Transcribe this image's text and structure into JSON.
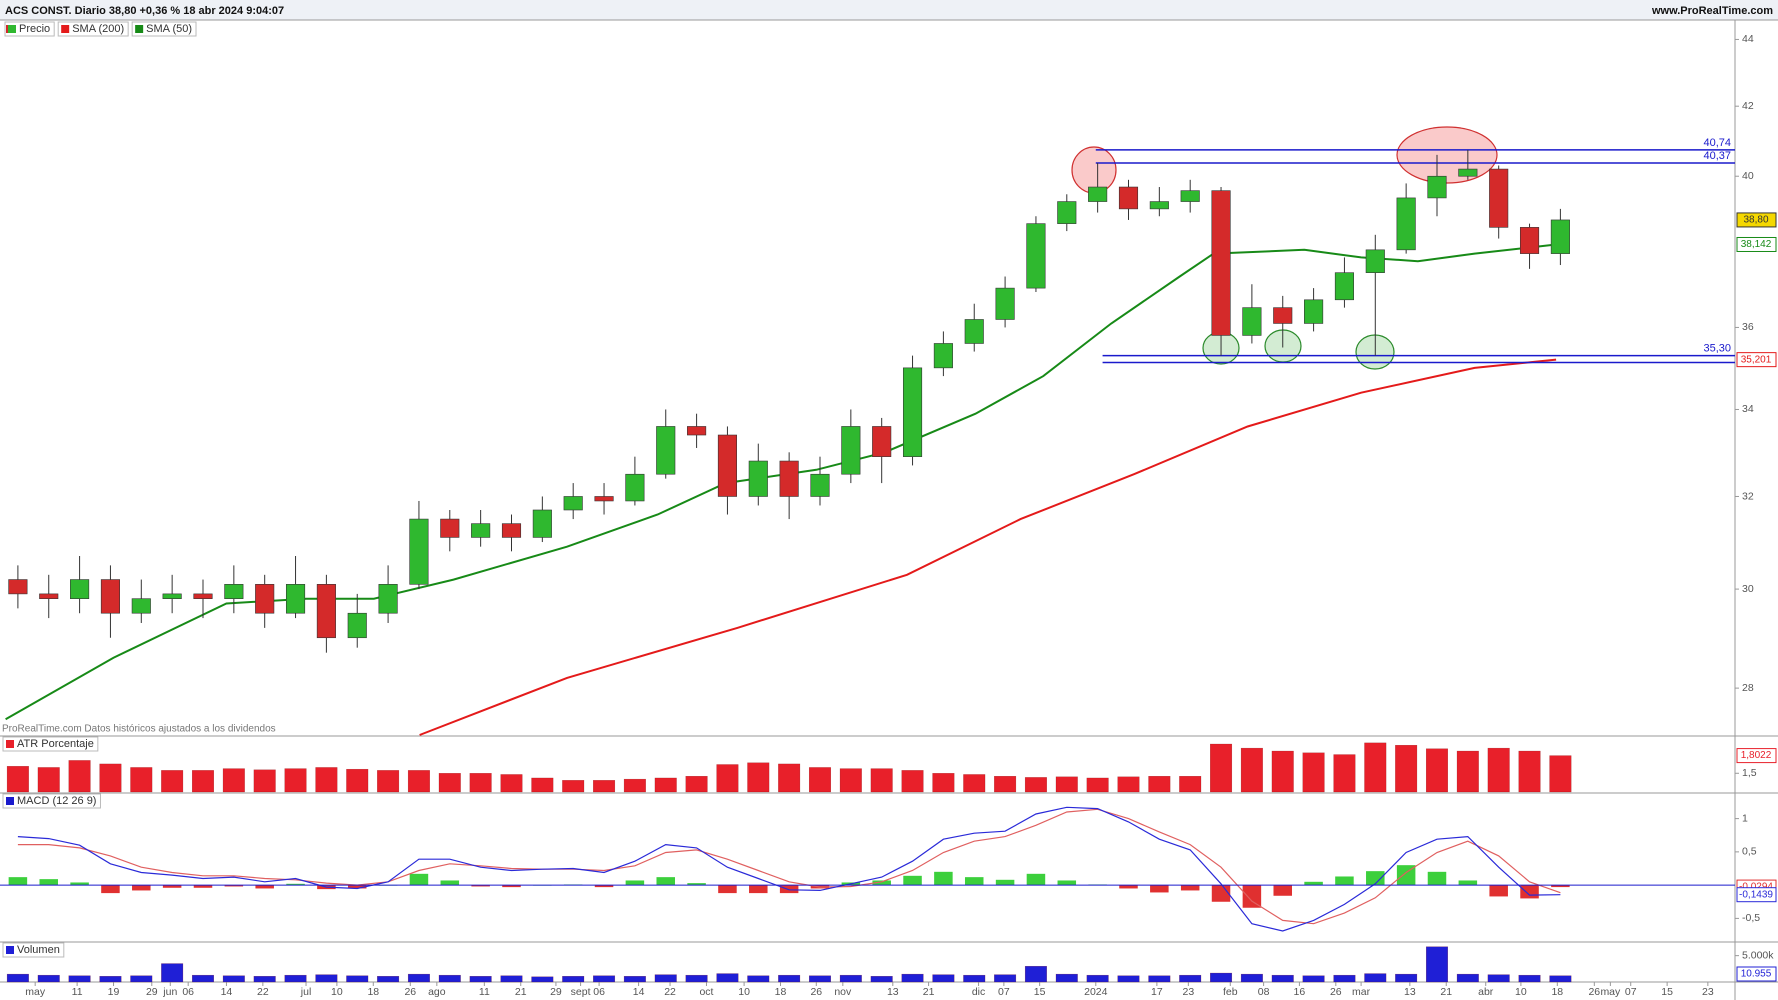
{
  "chart_data": [
    {
      "type": "candlestick",
      "title": "ACS CONST. Diario 38,80 +0,36 % 18 abr 2024 9:04:07",
      "source": "www.ProRealTime.com",
      "note": "ProRealTime.com Datos históricos ajustados a los dividendos",
      "name": "Precio",
      "up_color": "#2fb82f",
      "down_color": "#d42a2a",
      "last_label": "38,80",
      "log_scale": true,
      "xlim": [
        -0.9,
        280.3
      ],
      "ylim": [
        27.1,
        44.6
      ],
      "yticks": [
        28,
        30,
        32,
        34,
        36,
        40,
        42,
        44
      ],
      "x": [
        2,
        7,
        12,
        17,
        22,
        27,
        32,
        37,
        42,
        47,
        52,
        57,
        62,
        67,
        72,
        77,
        82,
        87,
        92,
        97,
        102,
        107,
        112,
        117,
        122,
        127,
        132,
        137,
        142,
        147,
        152,
        157,
        162,
        167,
        172,
        177,
        182,
        187,
        192,
        197,
        202,
        207,
        212,
        217,
        222,
        227,
        232,
        237,
        242,
        247,
        252
      ],
      "open": [
        30.2,
        29.9,
        29.8,
        30.2,
        29.5,
        29.8,
        29.9,
        29.8,
        30.1,
        29.5,
        30.1,
        29.0,
        29.5,
        30.1,
        31.5,
        31.1,
        31.4,
        31.1,
        31.7,
        32.0,
        31.9,
        32.5,
        33.6,
        33.4,
        32.0,
        32.8,
        32.0,
        32.5,
        33.6,
        32.9,
        35.0,
        35.6,
        36.2,
        37.0,
        38.7,
        39.3,
        39.7,
        39.1,
        39.3,
        39.6,
        35.8,
        36.5,
        36.1,
        36.7,
        37.4,
        38.0,
        39.4,
        40.0,
        40.2,
        38.6,
        37.9
      ],
      "high": [
        30.5,
        30.3,
        30.7,
        30.5,
        30.2,
        30.3,
        30.2,
        30.5,
        30.3,
        30.7,
        30.3,
        29.9,
        30.5,
        31.9,
        31.7,
        31.7,
        31.6,
        32.0,
        32.3,
        32.3,
        32.9,
        34.0,
        33.9,
        33.6,
        33.2,
        33.0,
        32.9,
        34.0,
        33.8,
        35.3,
        35.9,
        36.6,
        37.3,
        38.9,
        39.5,
        40.37,
        39.9,
        39.7,
        39.9,
        39.7,
        37.1,
        36.8,
        37.0,
        37.8,
        38.4,
        39.8,
        40.6,
        40.74,
        40.3,
        38.7,
        39.1
      ],
      "low": [
        29.6,
        29.4,
        29.5,
        29.0,
        29.3,
        29.5,
        29.4,
        29.5,
        29.2,
        29.4,
        28.7,
        28.8,
        29.3,
        30.0,
        30.8,
        30.9,
        30.8,
        31.0,
        31.5,
        31.6,
        31.8,
        32.4,
        33.1,
        31.6,
        31.8,
        31.5,
        31.8,
        32.3,
        32.3,
        32.7,
        34.8,
        35.4,
        36.0,
        36.9,
        38.5,
        39.0,
        38.8,
        38.9,
        39.0,
        35.3,
        35.6,
        35.5,
        35.9,
        36.5,
        35.3,
        37.9,
        38.9,
        39.9,
        38.3,
        37.5,
        37.6
      ],
      "close": [
        29.9,
        29.8,
        30.2,
        29.5,
        29.8,
        29.9,
        29.8,
        30.1,
        29.5,
        30.1,
        29.0,
        29.5,
        30.1,
        31.5,
        31.1,
        31.4,
        31.1,
        31.7,
        32.0,
        31.9,
        32.5,
        33.6,
        33.4,
        32.0,
        32.8,
        32.0,
        32.5,
        33.6,
        32.9,
        35.0,
        35.6,
        36.2,
        37.0,
        38.7,
        39.3,
        39.7,
        39.1,
        39.3,
        39.6,
        35.8,
        36.5,
        36.1,
        36.7,
        37.4,
        38.0,
        39.4,
        40.0,
        40.2,
        38.6,
        37.9,
        38.8
      ],
      "series": [
        {
          "name": "SMA (200)",
          "color": "#e41a1a",
          "value_label": "35,201",
          "x": [
            67.1,
            91,
            118.6,
            146.1,
            164.5,
            182.9,
            201.3,
            219.7,
            238.1,
            251.3
          ],
          "values": [
            27.1,
            28.2,
            29.2,
            30.3,
            31.5,
            32.5,
            33.6,
            34.4,
            35.0,
            35.201
          ]
        },
        {
          "name": "SMA (50)",
          "color": "#178a17",
          "value_label": "38,142",
          "x": [
            0,
            17.5,
            35.8,
            48.7,
            59.7,
            72.6,
            91,
            105.7,
            116.7,
            131.4,
            142.5,
            157.2,
            168.2,
            179.2,
            190.3,
            195.8,
            210.5,
            219.7,
            228.9,
            238.1,
            251.3
          ],
          "values": [
            27.4,
            28.6,
            29.7,
            29.8,
            29.8,
            30.2,
            30.9,
            31.6,
            32.3,
            32.6,
            33.0,
            33.9,
            34.8,
            36.1,
            37.3,
            37.9,
            38.0,
            37.8,
            37.7,
            37.9,
            38.142
          ]
        }
      ],
      "levels_color": "#1a1acc",
      "levels": [
        {
          "value": 40.74,
          "label": "40,74",
          "from": 176.7
        },
        {
          "value": 40.37,
          "label": "40,37",
          "from": 176.7
        },
        {
          "value": 35.3,
          "label": "35,30",
          "from": 177.8
        },
        {
          "value": 35.13,
          "label": null,
          "from": 177.8
        }
      ]
    },
    {
      "type": "bar",
      "title": "ATR Porcentaje",
      "color": "#e8202a",
      "value_label": "1,8022",
      "xlim": [
        -0.9,
        280.3
      ],
      "ylim": [
        1.18,
        2.12
      ],
      "yticks": [
        {
          "value": 1.5,
          "label": "1,5"
        }
      ],
      "x": [
        2,
        7,
        12,
        17,
        22,
        27,
        32,
        37,
        42,
        47,
        52,
        57,
        62,
        67,
        72,
        77,
        82,
        87,
        92,
        97,
        102,
        107,
        112,
        117,
        122,
        127,
        132,
        137,
        142,
        147,
        152,
        157,
        162,
        167,
        172,
        177,
        182,
        187,
        192,
        197,
        202,
        207,
        212,
        217,
        222,
        227,
        232,
        237,
        242,
        247,
        252
      ],
      "values": [
        1.62,
        1.6,
        1.72,
        1.66,
        1.6,
        1.55,
        1.55,
        1.58,
        1.56,
        1.58,
        1.6,
        1.57,
        1.55,
        1.55,
        1.5,
        1.5,
        1.48,
        1.42,
        1.38,
        1.38,
        1.4,
        1.42,
        1.45,
        1.65,
        1.68,
        1.66,
        1.6,
        1.58,
        1.58,
        1.55,
        1.5,
        1.48,
        1.45,
        1.43,
        1.44,
        1.42,
        1.44,
        1.45,
        1.45,
        2.0,
        1.93,
        1.88,
        1.85,
        1.82,
        2.02,
        1.98,
        1.92,
        1.88,
        1.93,
        1.88,
        1.8022
      ]
    },
    {
      "type": "line",
      "title": "MACD (12 26 9)",
      "title_color": "#1a1acc",
      "zero_line": 0,
      "xlim": [
        -0.9,
        280.3
      ],
      "ylim": [
        -0.84,
        1.37
      ],
      "yticks": [
        1,
        {
          "value": 0.5,
          "label": "0,5"
        },
        {
          "value": -0.5,
          "label": "-0,5"
        }
      ],
      "x": [
        2,
        7,
        12,
        17,
        22,
        27,
        32,
        37,
        42,
        47,
        52,
        57,
        62,
        67,
        72,
        77,
        82,
        87,
        92,
        97,
        102,
        107,
        112,
        117,
        122,
        127,
        132,
        137,
        142,
        147,
        152,
        157,
        162,
        167,
        172,
        177,
        182,
        187,
        192,
        197,
        202,
        207,
        212,
        217,
        222,
        227,
        232,
        237,
        242,
        247,
        252
      ],
      "series": [
        {
          "kind": "bar",
          "pos_color": "#3ccf3c",
          "neg_color": "#e03030",
          "value_label": "-0,0294",
          "values": [
            0.12,
            0.09,
            0.04,
            -0.12,
            -0.08,
            -0.04,
            -0.04,
            -0.02,
            -0.05,
            0.02,
            -0.06,
            -0.05,
            0,
            0.17,
            0.07,
            -0.02,
            -0.03,
            0,
            0.01,
            -0.03,
            0.07,
            0.12,
            0.03,
            -0.12,
            -0.12,
            -0.12,
            -0.05,
            0.04,
            0.07,
            0.14,
            0.2,
            0.12,
            0.08,
            0.17,
            0.07,
            0.01,
            -0.05,
            -0.11,
            -0.08,
            -0.25,
            -0.34,
            -0.16,
            0.05,
            0.13,
            0.21,
            0.3,
            0.2,
            0.07,
            -0.17,
            -0.2,
            -0.0294
          ]
        },
        {
          "kind": "line",
          "color": "#e06060",
          "values": [
            0.61,
            0.61,
            0.56,
            0.44,
            0.27,
            0.19,
            0.14,
            0.14,
            0.1,
            0.08,
            0.03,
            0,
            0.05,
            0.22,
            0.32,
            0.29,
            0.25,
            0.24,
            0.24,
            0.22,
            0.29,
            0.49,
            0.53,
            0.39,
            0.22,
            0.05,
            -0.03,
            -0.02,
            0.05,
            0.22,
            0.49,
            0.66,
            0.73,
            0.9,
            1.1,
            1.14,
            1.0,
            0.8,
            0.61,
            0.27,
            -0.24,
            -0.53,
            -0.58,
            -0.42,
            -0.19,
            0.19,
            0.49,
            0.66,
            0.44,
            0.05,
            -0.1145
          ]
        },
        {
          "kind": "line",
          "color": "#2a2ad8",
          "value_label": "-0,1439",
          "values": [
            0.73,
            0.7,
            0.6,
            0.32,
            0.19,
            0.15,
            0.1,
            0.12,
            0.05,
            0.1,
            -0.03,
            -0.05,
            0.05,
            0.39,
            0.39,
            0.27,
            0.22,
            0.24,
            0.25,
            0.19,
            0.36,
            0.61,
            0.56,
            0.27,
            0.1,
            -0.07,
            -0.08,
            0.02,
            0.12,
            0.36,
            0.69,
            0.78,
            0.81,
            1.07,
            1.17,
            1.15,
            0.95,
            0.69,
            0.53,
            0.02,
            -0.58,
            -0.69,
            -0.53,
            -0.29,
            0.02,
            0.49,
            0.69,
            0.73,
            0.27,
            -0.15,
            -0.1439
          ]
        }
      ]
    },
    {
      "type": "bar",
      "title": "Volumen",
      "color": "#1f1fd6",
      "current_label": "10.955",
      "xlim": [
        -0.9,
        280.3
      ],
      "ylim": [
        0,
        7400
      ],
      "yticks": [
        {
          "value": 5000,
          "label": "5.000k"
        }
      ],
      "x": [
        2,
        7,
        12,
        17,
        22,
        27,
        32,
        37,
        42,
        47,
        52,
        57,
        62,
        67,
        72,
        77,
        82,
        87,
        92,
        97,
        102,
        107,
        112,
        117,
        122,
        127,
        132,
        137,
        142,
        147,
        152,
        157,
        162,
        167,
        172,
        177,
        182,
        187,
        192,
        197,
        202,
        207,
        212,
        217,
        222,
        227,
        232,
        237,
        242,
        247,
        252
      ],
      "values": [
        1500,
        1300,
        1200,
        1100,
        1200,
        3500,
        1300,
        1200,
        1100,
        1300,
        1400,
        1200,
        1100,
        1500,
        1300,
        1100,
        1200,
        1000,
        1100,
        1200,
        1100,
        1400,
        1300,
        1600,
        1200,
        1300,
        1200,
        1300,
        1100,
        1500,
        1400,
        1300,
        1400,
        3000,
        1500,
        1300,
        1200,
        1200,
        1300,
        1700,
        1500,
        1300,
        1200,
        1300,
        1600,
        1500,
        6700,
        1500,
        1400,
        1300,
        1200
      ],
      "xticks": [
        {
          "value": 4.8,
          "label": "may"
        },
        {
          "value": 11.6,
          "label": "11"
        },
        {
          "value": 17.5,
          "label": "19"
        },
        {
          "value": 23.7,
          "label": "29"
        },
        {
          "value": 26.7,
          "label": "jun"
        },
        {
          "value": 29.6,
          "label": "06"
        },
        {
          "value": 35.8,
          "label": "14"
        },
        {
          "value": 41.7,
          "label": "22"
        },
        {
          "value": 48.7,
          "label": "jul"
        },
        {
          "value": 53.7,
          "label": "10"
        },
        {
          "value": 59.6,
          "label": "18"
        },
        {
          "value": 65.6,
          "label": "26"
        },
        {
          "value": 69.9,
          "label": "ago"
        },
        {
          "value": 77.6,
          "label": "11"
        },
        {
          "value": 83.5,
          "label": "21"
        },
        {
          "value": 89.2,
          "label": "29"
        },
        {
          "value": 93.2,
          "label": "sept"
        },
        {
          "value": 96.2,
          "label": "06"
        },
        {
          "value": 102.6,
          "label": "14"
        },
        {
          "value": 107.7,
          "label": "22"
        },
        {
          "value": 113.6,
          "label": "oct"
        },
        {
          "value": 119.7,
          "label": "10"
        },
        {
          "value": 125.6,
          "label": "18"
        },
        {
          "value": 131.4,
          "label": "26"
        },
        {
          "value": 135.7,
          "label": "nov"
        },
        {
          "value": 143.8,
          "label": "13"
        },
        {
          "value": 149.6,
          "label": "21"
        },
        {
          "value": 157.7,
          "label": "dic"
        },
        {
          "value": 161.8,
          "label": "07"
        },
        {
          "value": 167.6,
          "label": "15"
        },
        {
          "value": 176.7,
          "label": "2024"
        },
        {
          "value": 186.6,
          "label": "17"
        },
        {
          "value": 191.7,
          "label": "23"
        },
        {
          "value": 198.5,
          "label": "feb"
        },
        {
          "value": 203.9,
          "label": "08"
        },
        {
          "value": 209.7,
          "label": "16"
        },
        {
          "value": 215.6,
          "label": "26"
        },
        {
          "value": 219.7,
          "label": "mar"
        },
        {
          "value": 227.6,
          "label": "13"
        },
        {
          "value": 233.5,
          "label": "21"
        },
        {
          "value": 239.9,
          "label": "abr"
        },
        {
          "value": 245.6,
          "label": "10"
        },
        {
          "value": 251.5,
          "label": "18"
        },
        {
          "value": 257.5,
          "label": "26"
        },
        {
          "value": 260.1,
          "label": "may"
        },
        {
          "value": 263.4,
          "label": "07"
        },
        {
          "value": 269.3,
          "label": "15"
        },
        {
          "value": 275.9,
          "label": "23"
        }
      ]
    }
  ]
}
